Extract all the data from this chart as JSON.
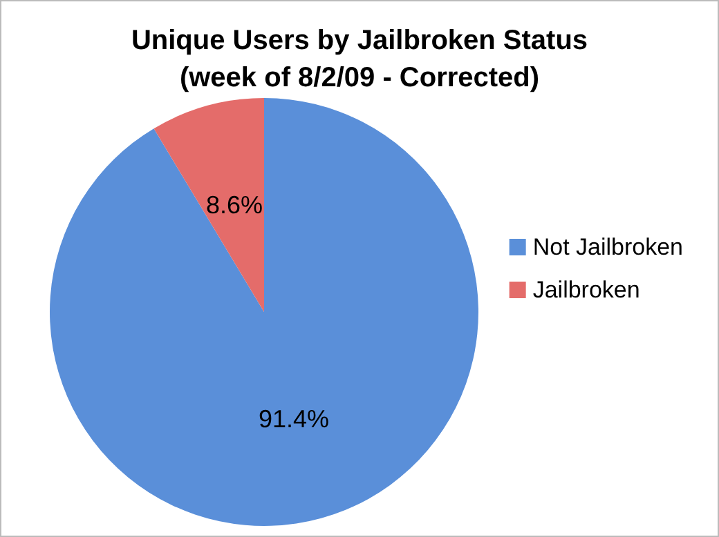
{
  "chart_data": {
    "type": "pie",
    "title": "Unique Users by Jailbroken Status\n(week of 8/2/09 - Corrected)",
    "categories": [
      "Not Jailbroken",
      "Jailbroken"
    ],
    "values": [
      91.4,
      8.6
    ],
    "colors": [
      "#5a8fd9",
      "#e46c6a"
    ],
    "value_labels": [
      "91.4%",
      "8.6%"
    ],
    "legend": "right"
  }
}
